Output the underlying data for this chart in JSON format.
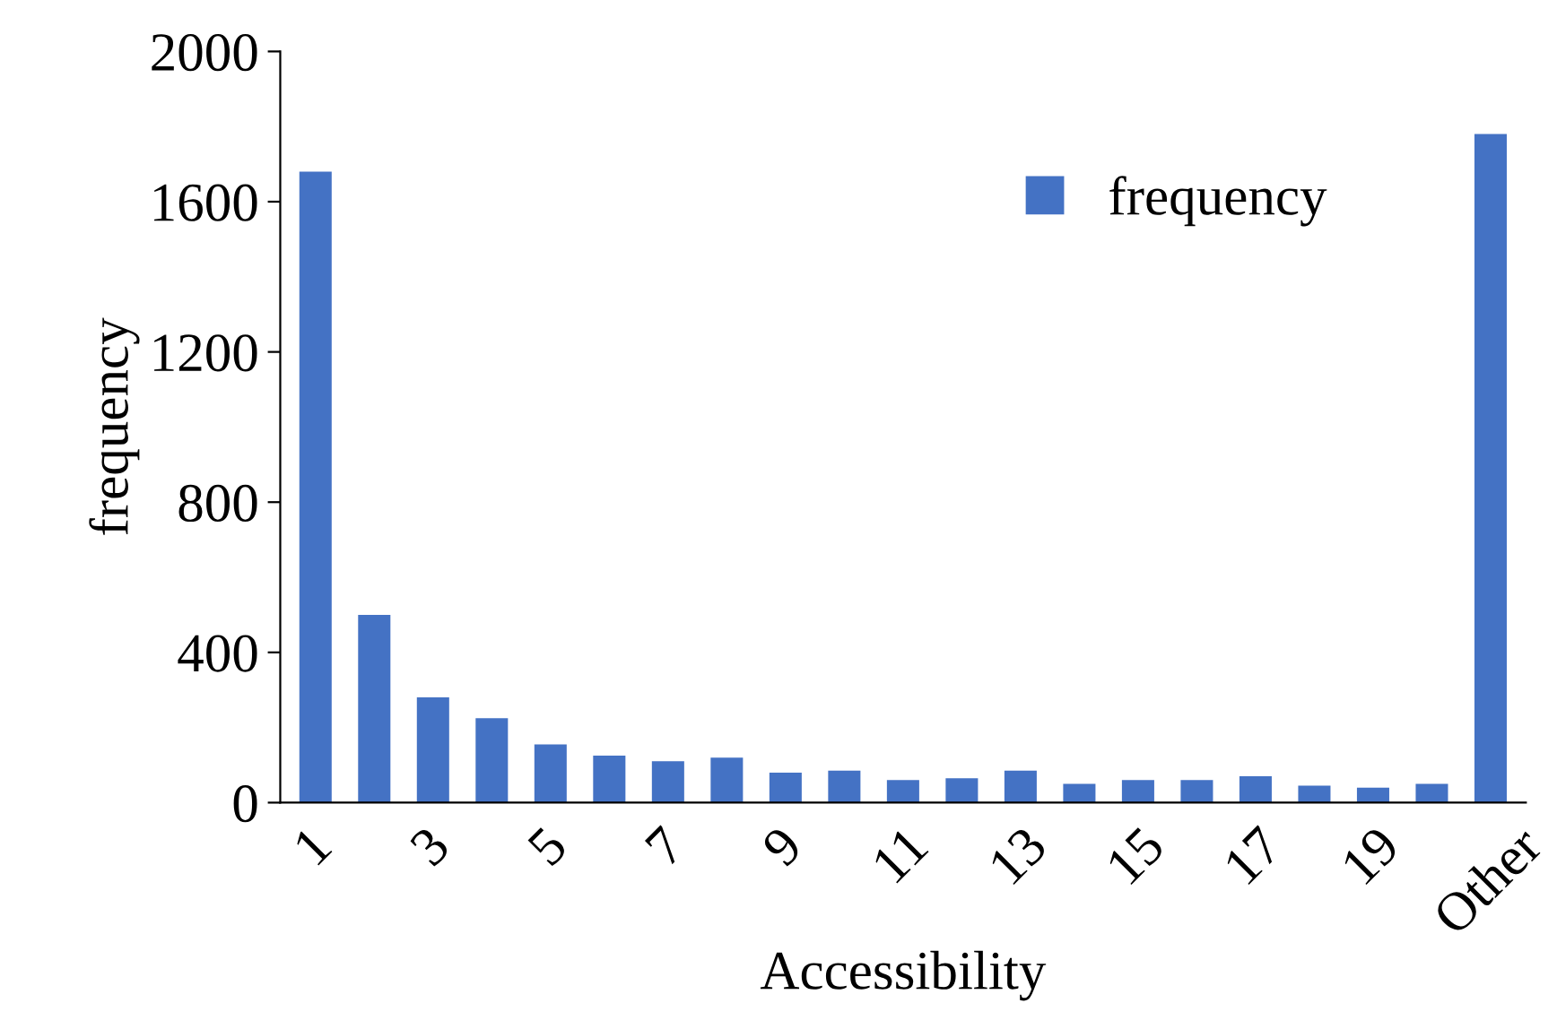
{
  "chart_data": {
    "type": "bar",
    "xlabel": "Accessibility",
    "ylabel": "frequency",
    "categories": [
      "1",
      null,
      "3",
      null,
      "5",
      null,
      "7",
      null,
      "9",
      null,
      "11",
      null,
      "13",
      null,
      "15",
      null,
      "17",
      null,
      "19",
      null,
      "Other"
    ],
    "series": [
      {
        "name": "frequency",
        "color": "#4472c4",
        "values": [
          1680,
          500,
          280,
          225,
          155,
          125,
          110,
          120,
          80,
          85,
          60,
          65,
          85,
          50,
          60,
          60,
          70,
          45,
          40,
          50,
          1780
        ]
      }
    ],
    "ylim": [
      0,
      2000
    ],
    "yticks": [
      0,
      400,
      800,
      1200,
      1600,
      2000
    ],
    "grid": false,
    "legend": "top right"
  }
}
